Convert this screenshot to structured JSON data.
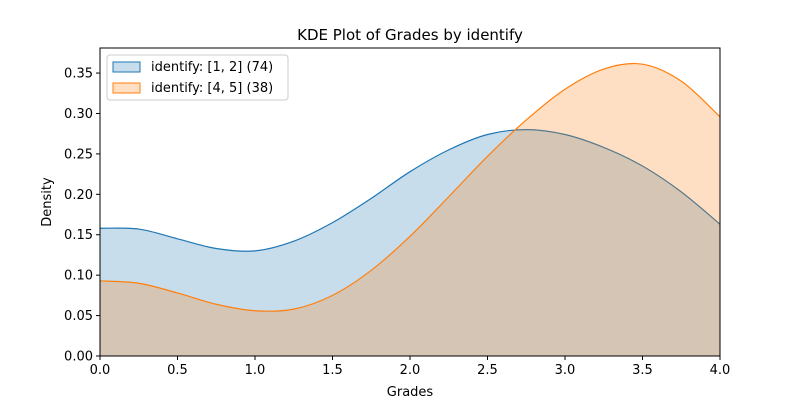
{
  "chart_data": {
    "type": "area",
    "title": "KDE Plot of Grades by identify",
    "xlabel": "Grades",
    "ylabel": "Density",
    "xlim": [
      0,
      4.0
    ],
    "ylim": [
      0,
      0.381
    ],
    "xticks": [
      "0.0",
      "0.5",
      "1.0",
      "1.5",
      "2.0",
      "2.5",
      "3.0",
      "3.5",
      "4.0"
    ],
    "yticks": [
      "0.00",
      "0.05",
      "0.10",
      "0.15",
      "0.20",
      "0.25",
      "0.30",
      "0.35"
    ],
    "grid": false,
    "legend_position": "top-left",
    "x": [
      0,
      0.25,
      0.5,
      0.75,
      1.0,
      1.25,
      1.5,
      1.75,
      2.0,
      2.25,
      2.5,
      2.75,
      3.0,
      3.25,
      3.5,
      3.75,
      4.0
    ],
    "series": [
      {
        "name": "identify: [1, 2] (74)",
        "color": "#1f77b4",
        "values": [
          0.158,
          0.157,
          0.145,
          0.133,
          0.13,
          0.142,
          0.165,
          0.195,
          0.228,
          0.255,
          0.274,
          0.28,
          0.274,
          0.258,
          0.235,
          0.203,
          0.163
        ]
      },
      {
        "name": "identify: [4, 5] (38)",
        "color": "#ff7f0e",
        "values": [
          0.093,
          0.09,
          0.078,
          0.064,
          0.056,
          0.058,
          0.075,
          0.106,
          0.148,
          0.197,
          0.247,
          0.292,
          0.33,
          0.355,
          0.361,
          0.34,
          0.296
        ]
      }
    ]
  }
}
